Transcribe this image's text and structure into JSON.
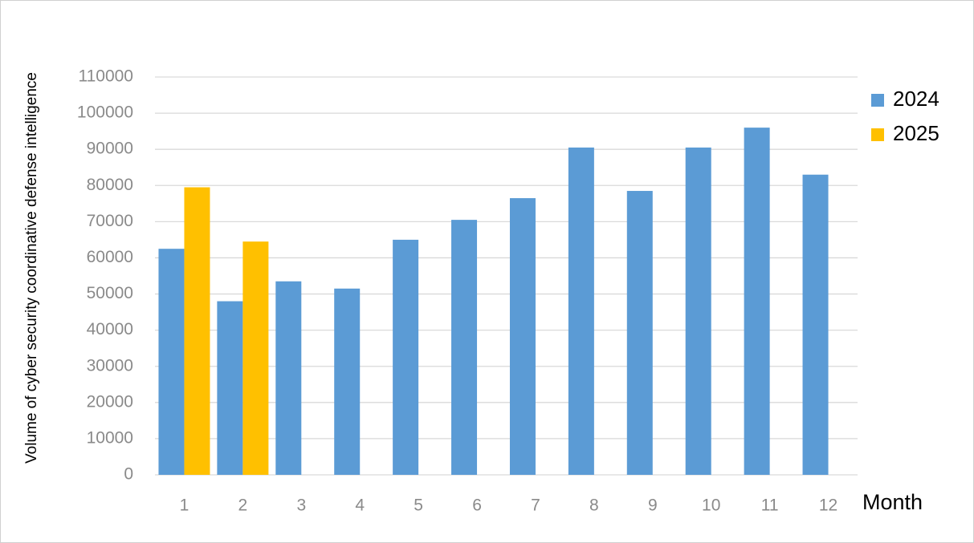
{
  "chart_data": {
    "type": "bar",
    "y_label": "Volume of cyber security coordinative defense intelligence",
    "x_label": "Month",
    "categories": [
      "1",
      "2",
      "3",
      "4",
      "5",
      "6",
      "7",
      "8",
      "9",
      "10",
      "11",
      "12"
    ],
    "series": [
      {
        "name": "2024",
        "color": "#5b9bd5",
        "values": [
          62500,
          48000,
          53500,
          51500,
          65000,
          70500,
          76500,
          90500,
          78500,
          90500,
          96000,
          83000
        ]
      },
      {
        "name": "2025",
        "color": "#ffc000",
        "values": [
          79500,
          64500,
          null,
          null,
          null,
          null,
          null,
          null,
          null,
          null,
          null,
          null
        ]
      }
    ],
    "ylim": [
      0,
      110000
    ],
    "yticks": [
      0,
      10000,
      20000,
      30000,
      40000,
      50000,
      60000,
      70000,
      80000,
      90000,
      100000,
      110000
    ],
    "grid": true,
    "legend": "right"
  }
}
